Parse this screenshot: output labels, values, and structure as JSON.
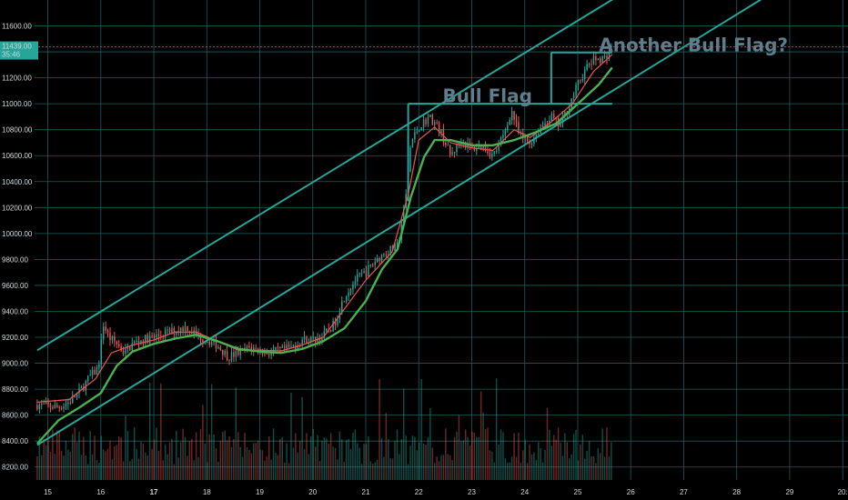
{
  "chart_data": {
    "type": "candlestick",
    "colors": {
      "background": "#000000",
      "grid": "#1b5e5a",
      "up": "#26a69a",
      "down": "#ef5350",
      "channel": "#26a69a",
      "ema_fast": "#ef5350",
      "ema_slow": "#4caf50",
      "annotation": "#607d8b",
      "price_tag": "#26a69a",
      "axis_text": "#cfd8dc"
    },
    "y_axis": {
      "ticks": [
        "11600.00",
        "11400.00",
        "11200.00",
        "11000.00",
        "10800.00",
        "10600.00",
        "10400.00",
        "10200.00",
        "10000.00",
        "9800.00",
        "9600.00",
        "9400.00",
        "9200.00",
        "9000.00",
        "8800.00",
        "8600.00",
        "8400.00",
        "8200.00"
      ],
      "tick_values": [
        11600,
        11400,
        11200,
        11000,
        10800,
        10600,
        10400,
        10200,
        10000,
        9800,
        9600,
        9400,
        9200,
        9000,
        8800,
        8600,
        8400,
        8200
      ],
      "range": [
        8100,
        11800
      ]
    },
    "x_axis": {
      "ticks": [
        {
          "label": "15",
          "day": 15,
          "bold": false
        },
        {
          "label": "16",
          "day": 16,
          "bold": false
        },
        {
          "label": "17",
          "day": 17,
          "bold": true
        },
        {
          "label": "18",
          "day": 18,
          "bold": false
        },
        {
          "label": "19",
          "day": 19,
          "bold": false
        },
        {
          "label": "20",
          "day": 20,
          "bold": false
        },
        {
          "label": "21",
          "day": 21,
          "bold": false
        },
        {
          "label": "22",
          "day": 22,
          "bold": false
        },
        {
          "label": "23",
          "day": 23,
          "bold": false
        },
        {
          "label": "24",
          "day": 24,
          "bold": false
        },
        {
          "label": "25",
          "day": 25,
          "bold": false
        },
        {
          "label": "26",
          "day": 26,
          "bold": false
        },
        {
          "label": "27",
          "day": 27,
          "bold": false
        },
        {
          "label": "28",
          "day": 28,
          "bold": false
        },
        {
          "label": "29",
          "day": 29,
          "bold": false
        },
        {
          "label": "20:",
          "day": 30,
          "bold": false
        }
      ],
      "range": [
        14.75,
        30.1
      ]
    },
    "price_path": [
      [
        14.8,
        8680
      ],
      [
        15.2,
        8660
      ],
      [
        15.4,
        8700
      ],
      [
        15.6,
        8780
      ],
      [
        15.8,
        8900
      ],
      [
        15.95,
        8960
      ],
      [
        16.05,
        9300
      ],
      [
        16.15,
        9200
      ],
      [
        16.3,
        9150
      ],
      [
        16.45,
        9080
      ],
      [
        16.6,
        9150
      ],
      [
        16.8,
        9180
      ],
      [
        17.0,
        9200
      ],
      [
        17.2,
        9230
      ],
      [
        17.4,
        9250
      ],
      [
        17.6,
        9280
      ],
      [
        17.8,
        9220
      ],
      [
        18.0,
        9180
      ],
      [
        18.2,
        9140
      ],
      [
        18.4,
        9050
      ],
      [
        18.6,
        9080
      ],
      [
        18.8,
        9120
      ],
      [
        19.0,
        9100
      ],
      [
        19.2,
        9080
      ],
      [
        19.4,
        9100
      ],
      [
        19.6,
        9120
      ],
      [
        19.8,
        9180
      ],
      [
        20.0,
        9180
      ],
      [
        20.2,
        9210
      ],
      [
        20.4,
        9300
      ],
      [
        20.6,
        9520
      ],
      [
        20.8,
        9640
      ],
      [
        21.0,
        9700
      ],
      [
        21.2,
        9800
      ],
      [
        21.4,
        9860
      ],
      [
        21.6,
        9900
      ],
      [
        21.75,
        10250
      ],
      [
        21.85,
        10700
      ],
      [
        22.0,
        10820
      ],
      [
        22.2,
        10900
      ],
      [
        22.4,
        10800
      ],
      [
        22.6,
        10600
      ],
      [
        22.8,
        10720
      ],
      [
        23.0,
        10650
      ],
      [
        23.2,
        10680
      ],
      [
        23.4,
        10600
      ],
      [
        23.6,
        10750
      ],
      [
        23.75,
        10950
      ],
      [
        23.9,
        10750
      ],
      [
        24.1,
        10700
      ],
      [
        24.3,
        10820
      ],
      [
        24.5,
        10900
      ],
      [
        24.65,
        10830
      ],
      [
        24.8,
        10950
      ],
      [
        25.0,
        11150
      ],
      [
        25.2,
        11300
      ],
      [
        25.35,
        11350
      ],
      [
        25.5,
        11350
      ],
      [
        25.65,
        11439
      ]
    ],
    "ema_fast": [
      [
        14.8,
        8700
      ],
      [
        15.4,
        8720
      ],
      [
        15.9,
        8880
      ],
      [
        16.2,
        9080
      ],
      [
        16.6,
        9140
      ],
      [
        17.0,
        9180
      ],
      [
        17.4,
        9240
      ],
      [
        17.8,
        9240
      ],
      [
        18.2,
        9170
      ],
      [
        18.6,
        9100
      ],
      [
        19.0,
        9100
      ],
      [
        19.4,
        9095
      ],
      [
        19.8,
        9140
      ],
      [
        20.2,
        9200
      ],
      [
        20.6,
        9420
      ],
      [
        21.0,
        9640
      ],
      [
        21.5,
        9860
      ],
      [
        21.8,
        10300
      ],
      [
        22.0,
        10720
      ],
      [
        22.3,
        10820
      ],
      [
        22.6,
        10700
      ],
      [
        23.0,
        10660
      ],
      [
        23.4,
        10640
      ],
      [
        23.8,
        10800
      ],
      [
        24.1,
        10740
      ],
      [
        24.5,
        10860
      ],
      [
        24.9,
        11000
      ],
      [
        25.3,
        11250
      ],
      [
        25.65,
        11380
      ]
    ],
    "ema_slow": [
      [
        14.8,
        8380
      ],
      [
        15.2,
        8560
      ],
      [
        15.6,
        8660
      ],
      [
        16.0,
        8770
      ],
      [
        16.3,
        8980
      ],
      [
        16.6,
        9090
      ],
      [
        17.0,
        9150
      ],
      [
        17.4,
        9190
      ],
      [
        17.8,
        9220
      ],
      [
        18.2,
        9170
      ],
      [
        18.6,
        9110
      ],
      [
        19.0,
        9090
      ],
      [
        19.4,
        9080
      ],
      [
        19.8,
        9110
      ],
      [
        20.2,
        9170
      ],
      [
        20.6,
        9270
      ],
      [
        21.0,
        9480
      ],
      [
        21.3,
        9720
      ],
      [
        21.6,
        9880
      ],
      [
        21.85,
        10280
      ],
      [
        22.1,
        10590
      ],
      [
        22.3,
        10720
      ],
      [
        22.6,
        10720
      ],
      [
        23.0,
        10680
      ],
      [
        23.4,
        10680
      ],
      [
        23.8,
        10720
      ],
      [
        24.2,
        10780
      ],
      [
        24.6,
        10850
      ],
      [
        25.0,
        11000
      ],
      [
        25.4,
        11150
      ],
      [
        25.65,
        11280
      ]
    ],
    "channel_lines": [
      {
        "from": [
          14.8,
          9100
        ],
        "to": [
          26.0,
          11890
        ]
      },
      {
        "from": [
          14.8,
          8370
        ],
        "to": [
          28.8,
          11890
        ]
      }
    ],
    "flag_boxes": [
      {
        "x0": 21.8,
        "x1": 25.65,
        "y0": 11000,
        "y1": 11000,
        "left_edge": [
          21.8,
          10250,
          11000
        ],
        "right_edge": null
      },
      {
        "x0": 24.5,
        "x1": 25.65,
        "y0": 11395,
        "y1": 11395,
        "left_edge": [
          24.5,
          11000,
          11395
        ],
        "right_edge": null
      }
    ],
    "annotations": [
      {
        "text": "Bull Flag",
        "x": 22.45,
        "y": 11010
      },
      {
        "text": "Another Bull Flag?",
        "x": 25.4,
        "y": 11405
      }
    ],
    "last_price": {
      "value": 11439,
      "label": "11439.00",
      "countdown": "35:46"
    },
    "volume": {
      "max_height_fraction": 0.22
    }
  }
}
